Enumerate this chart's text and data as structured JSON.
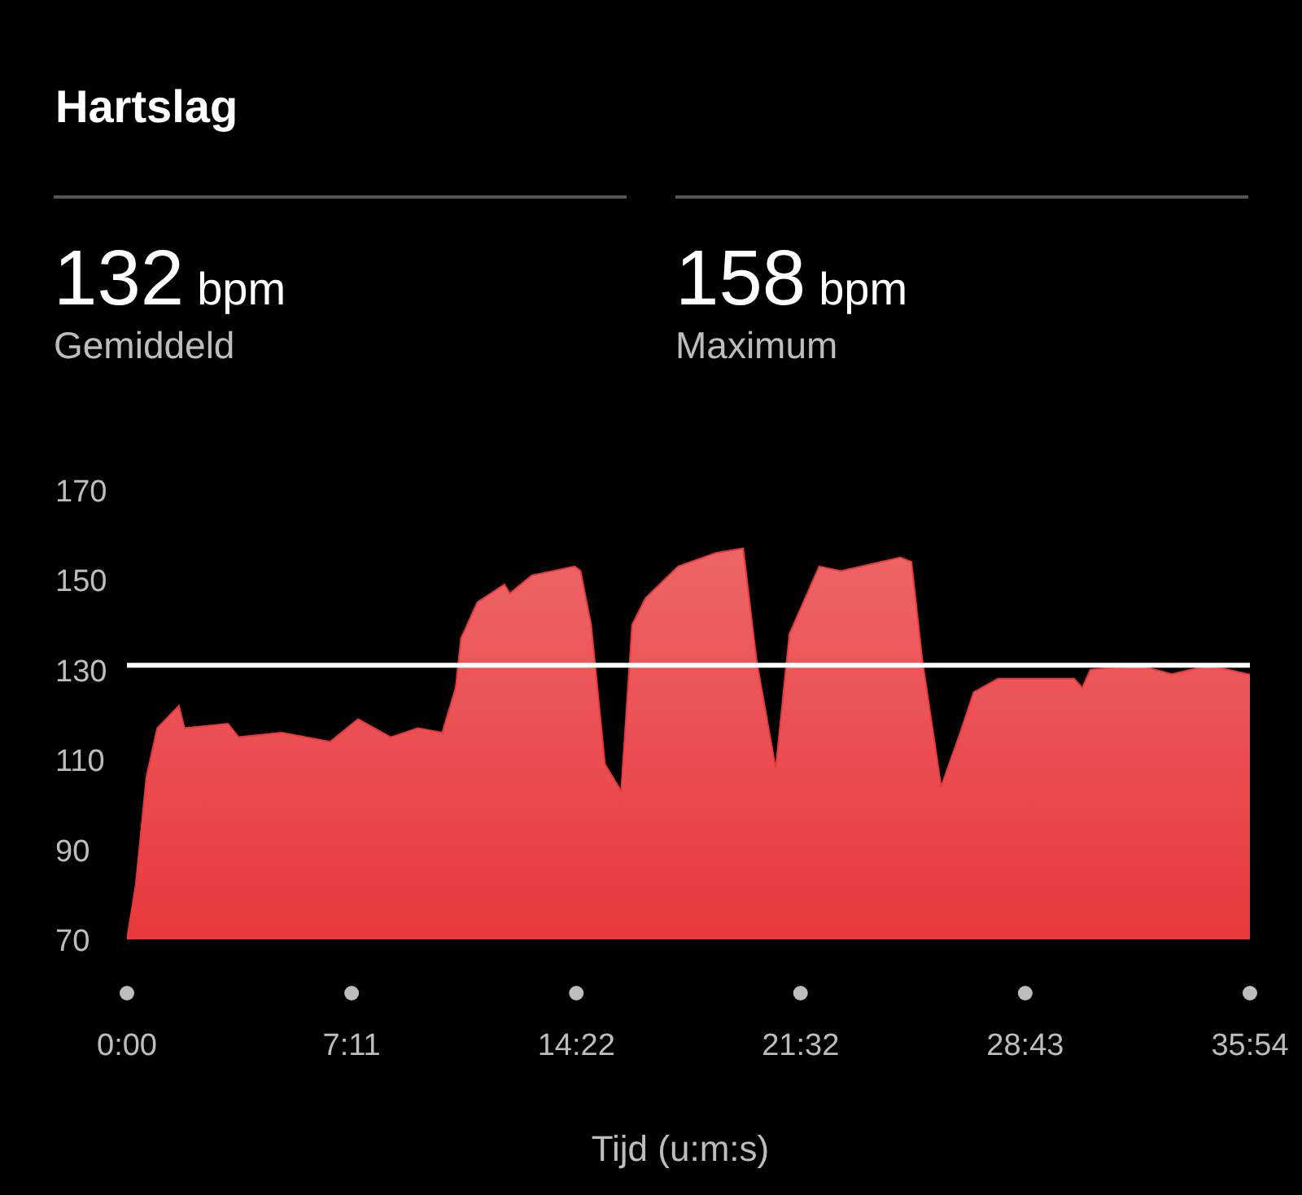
{
  "chart_data": {
    "type": "area",
    "title": "Hartslag",
    "annotations": [
      "132 bpm",
      "Gemiddeld",
      "158 bpm",
      "Maximum"
    ],
    "xlabel": "Tijd (u:m:s)",
    "x": [
      0,
      0.28,
      0.62,
      0.97,
      1.66,
      1.84,
      3.23,
      3.57,
      4.95,
      6.5,
      7.39,
      8.43,
      9.3,
      10.08,
      10.51,
      10.68,
      11.2,
      12.07,
      12.24,
      12.94,
      14.32,
      14.5,
      14.84,
      15.28,
      15.8,
      16.15,
      16.58,
      17.62,
      18.83,
      19.7,
      20.13,
      20.74,
      21.18,
      22.13,
      22.82,
      24.73,
      25.08,
      25.43,
      26.03,
      26.64,
      27.07,
      27.85,
      30.28,
      30.54,
      30.8,
      32.36,
      33.4,
      34.6,
      35.83,
      35.9
    ],
    "series": [
      {
        "color": "#e8393c",
        "values": [
          70,
          82,
          106,
          117,
          122,
          117,
          118,
          115,
          116,
          114,
          119,
          115,
          117,
          116,
          126,
          137,
          145,
          149,
          147,
          151,
          153,
          152,
          140,
          109,
          103,
          140,
          146,
          153,
          156,
          157,
          132,
          108,
          138,
          153,
          152,
          155,
          154,
          132,
          104,
          116,
          125,
          128,
          128,
          126,
          130,
          131,
          129,
          131,
          129,
          129
        ]
      }
    ],
    "xlim": [
      0,
      35.9
    ],
    "xticks": [
      {
        "value": 0,
        "label": "0:00"
      },
      {
        "value": 7.1833,
        "label": "7:11"
      },
      {
        "value": 14.3667,
        "label": "14:22"
      },
      {
        "value": 21.5333,
        "label": "21:32"
      },
      {
        "value": 28.7167,
        "label": "28:43"
      },
      {
        "value": 35.9,
        "label": "35:54"
      }
    ],
    "ylim": [
      70,
      170
    ],
    "yticks": [
      70,
      90,
      110,
      130,
      150,
      170
    ],
    "ref_lines": [
      {
        "axis": "y",
        "value": 131,
        "color": "#ffffff"
      }
    ],
    "grid": false
  }
}
